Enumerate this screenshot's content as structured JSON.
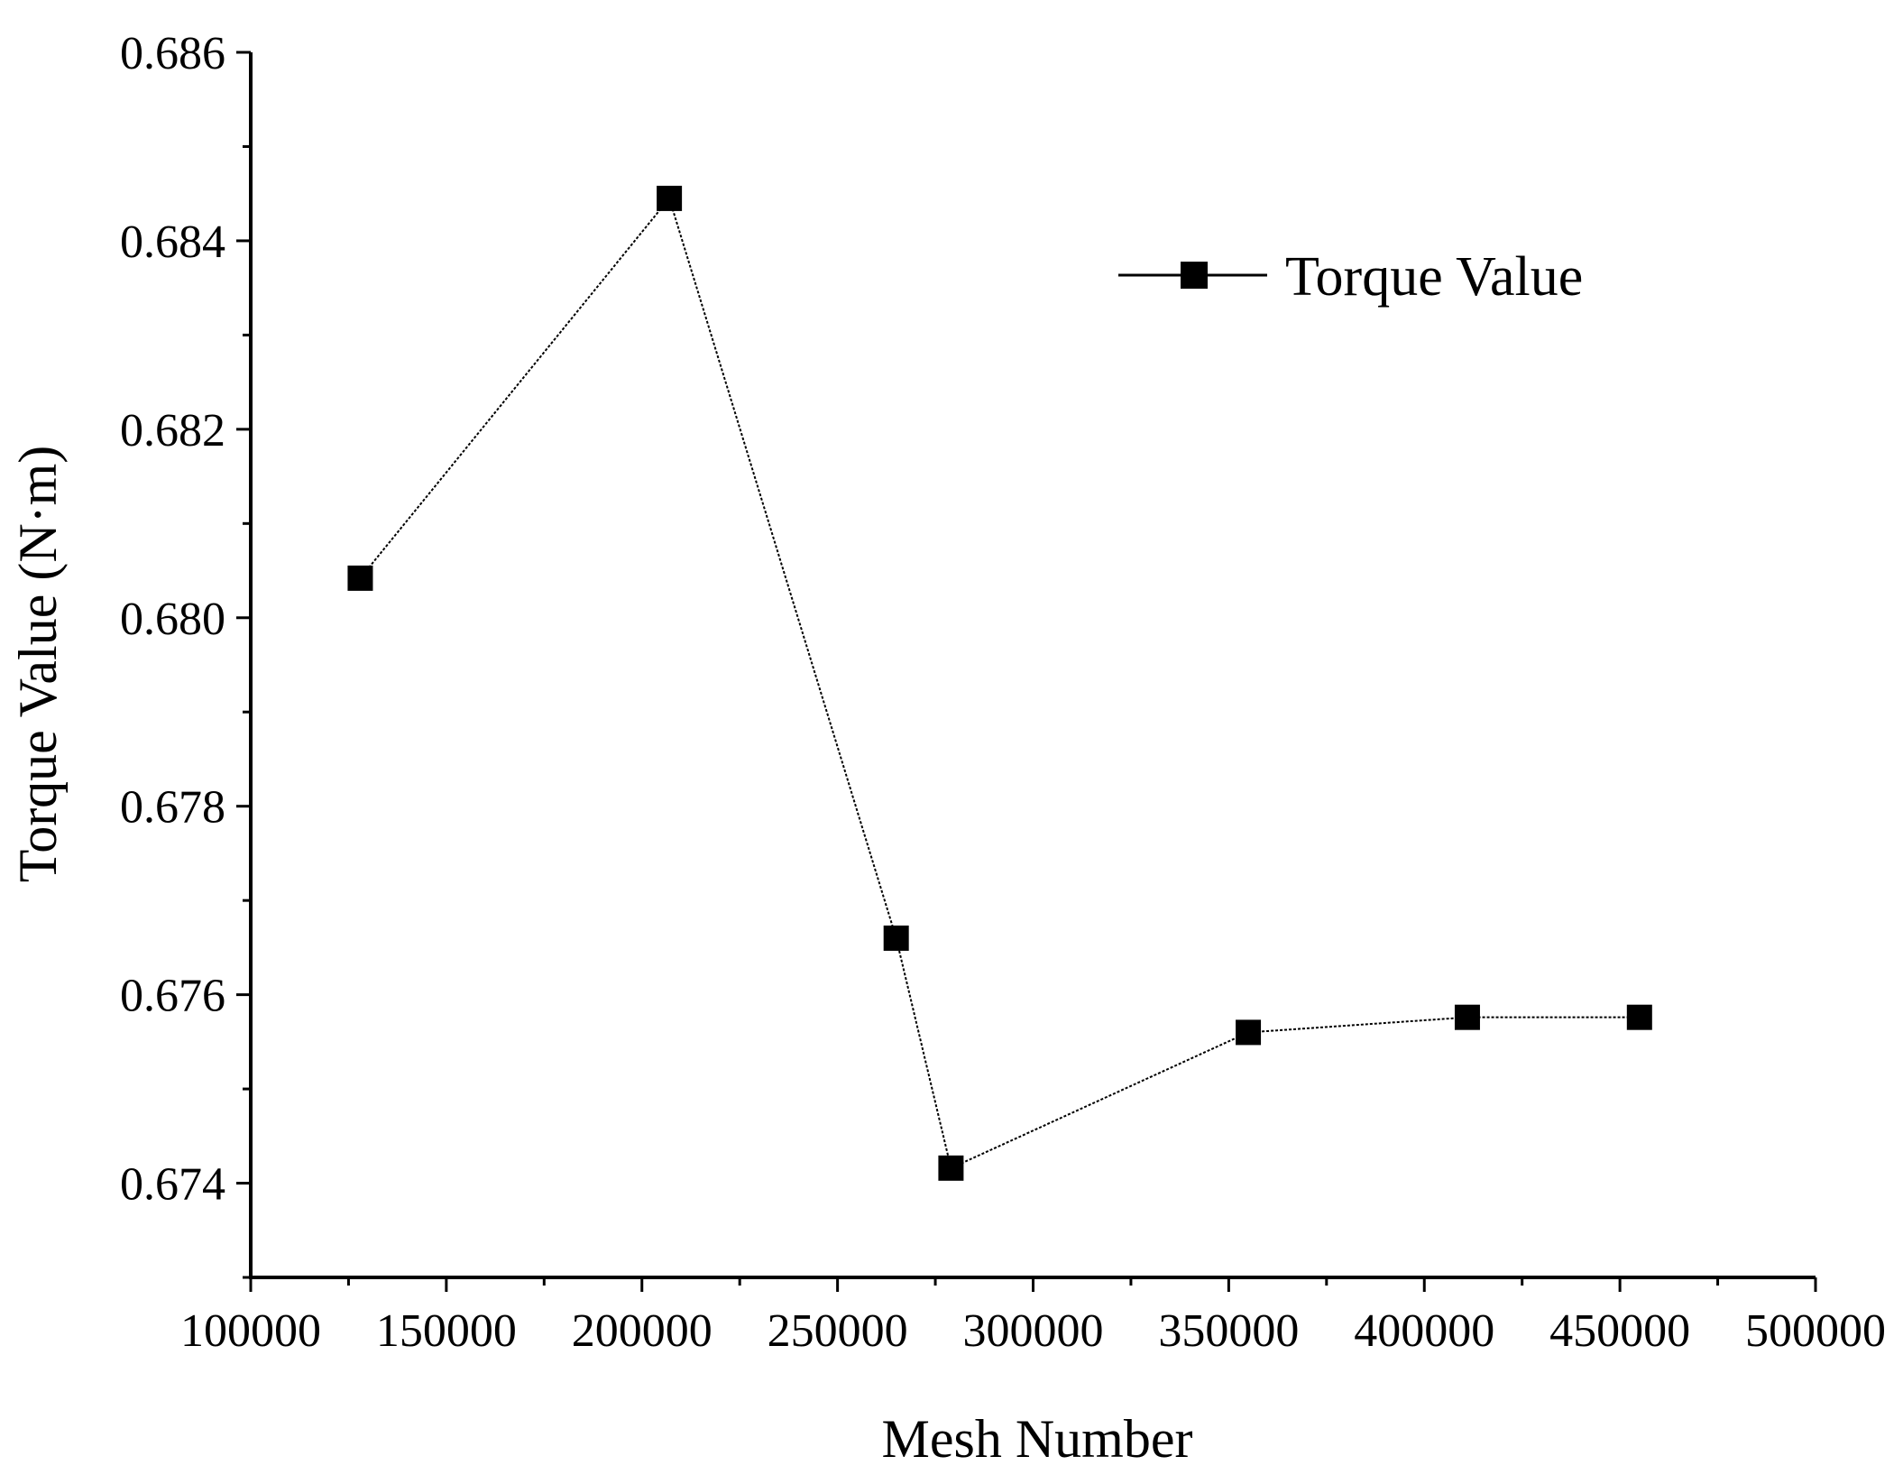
{
  "chart_data": {
    "type": "line",
    "title": "",
    "xlabel": "Mesh Number",
    "ylabel": "Torque Value (N·m)",
    "xlim": [
      100000,
      500000
    ],
    "ylim": [
      0.673,
      0.686
    ],
    "x_ticks": [
      100000,
      150000,
      200000,
      250000,
      300000,
      350000,
      400000,
      450000,
      500000
    ],
    "x_tick_labels": [
      "100000",
      "150000",
      "200000",
      "250000",
      "300000",
      "350000",
      "400000",
      "450000",
      "500000"
    ],
    "y_ticks": [
      0.674,
      0.676,
      0.678,
      0.68,
      0.682,
      0.684,
      0.686
    ],
    "y_tick_labels": [
      "0.674",
      "0.676",
      "0.678",
      "0.680",
      "0.682",
      "0.684",
      "0.686"
    ],
    "grid": false,
    "legend": {
      "position": "top-right",
      "entries": [
        "Torque Value"
      ]
    },
    "series": [
      {
        "name": "Torque Value",
        "marker": "square",
        "color": "#000000",
        "x": [
          128000,
          207000,
          265000,
          279000,
          355000,
          411000,
          455000
        ],
        "y": [
          0.68042,
          0.68445,
          0.6766,
          0.67416,
          0.6756,
          0.67576,
          0.67576
        ]
      }
    ]
  }
}
